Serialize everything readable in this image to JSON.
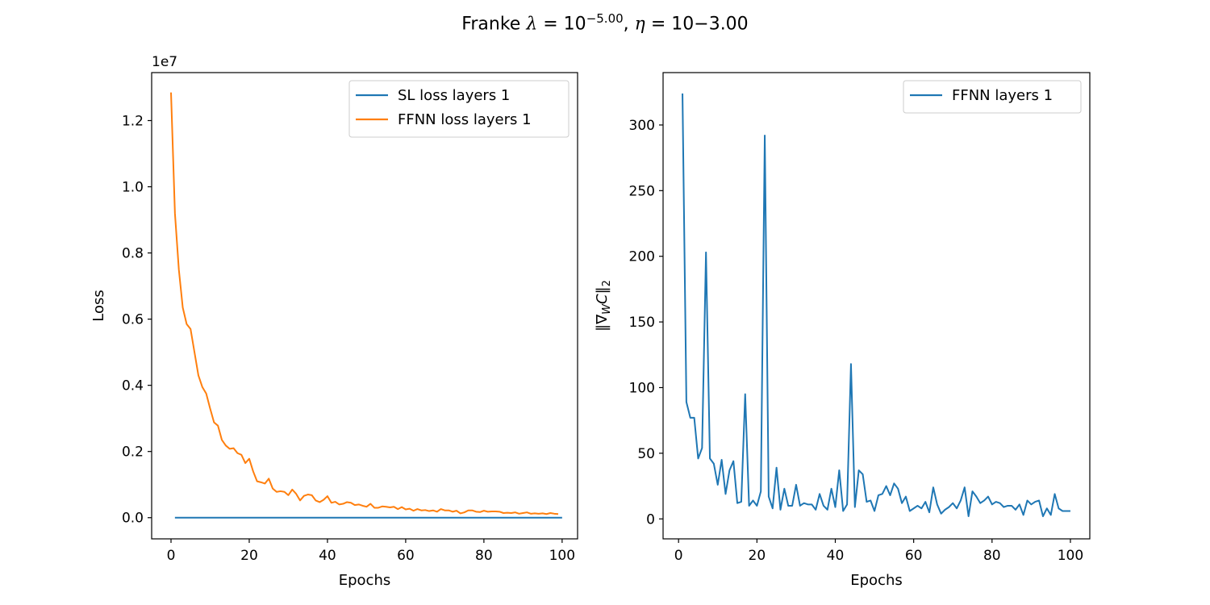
{
  "figure": {
    "title_prefix": "Franke ",
    "title_lambda": "λ",
    "title_eq1": " = 10",
    "title_exp": "−5.00",
    "title_comma": ", ",
    "title_eta": "η",
    "title_rest": " = 10−3.00"
  },
  "colors": {
    "blue": "#1f77b4",
    "orange": "#ff7f0e"
  },
  "chart_data": [
    {
      "type": "line",
      "xlabel": "Epochs",
      "ylabel": "Loss",
      "offset_label": "1e7",
      "xlim": [
        -4.95,
        103.95
      ],
      "ylim": [
        -0.064,
        1.345
      ],
      "xticks": [
        0,
        20,
        40,
        60,
        80,
        100
      ],
      "xtick_labels": [
        "0",
        "20",
        "40",
        "60",
        "80",
        "100"
      ],
      "yticks": [
        0.0,
        0.2,
        0.4,
        0.6,
        0.8,
        1.0,
        1.2
      ],
      "ytick_labels": [
        "0.0",
        "0.2",
        "0.4",
        "0.6",
        "0.8",
        "1.0",
        "1.2"
      ],
      "legend_position": "top-right",
      "series": [
        {
          "name": "SL loss layers 1",
          "color": "#1f77b4",
          "x": [
            1,
            100
          ],
          "y": [
            0.0,
            0.0
          ]
        },
        {
          "name": "FFNN loss layers 1",
          "color": "#ff7f0e",
          "x": [
            0,
            1,
            2,
            3,
            4,
            5,
            6,
            7,
            8,
            9,
            10,
            11,
            12,
            13,
            14,
            15,
            16,
            17,
            18,
            19,
            20,
            21,
            22,
            23,
            24,
            25,
            26,
            27,
            28,
            29,
            30,
            31,
            32,
            33,
            34,
            35,
            36,
            37,
            38,
            39,
            40,
            41,
            42,
            43,
            44,
            45,
            46,
            47,
            48,
            49,
            50,
            51,
            52,
            53,
            54,
            55,
            56,
            57,
            58,
            59,
            60,
            61,
            62,
            63,
            64,
            65,
            66,
            67,
            68,
            69,
            70,
            71,
            72,
            73,
            74,
            75,
            76,
            77,
            78,
            79,
            80,
            81,
            82,
            83,
            84,
            85,
            86,
            87,
            88,
            89,
            90,
            91,
            92,
            93,
            94,
            95,
            96,
            97,
            98,
            99
          ],
          "y": [
            1.285,
            0.92,
            0.75,
            0.635,
            0.585,
            0.57,
            0.5,
            0.43,
            0.395,
            0.375,
            0.33,
            0.288,
            0.278,
            0.235,
            0.218,
            0.208,
            0.21,
            0.195,
            0.19,
            0.165,
            0.178,
            0.14,
            0.11,
            0.107,
            0.103,
            0.118,
            0.088,
            0.078,
            0.08,
            0.078,
            0.068,
            0.085,
            0.072,
            0.052,
            0.066,
            0.07,
            0.068,
            0.052,
            0.047,
            0.054,
            0.065,
            0.045,
            0.048,
            0.04,
            0.042,
            0.047,
            0.045,
            0.038,
            0.04,
            0.036,
            0.033,
            0.042,
            0.03,
            0.03,
            0.034,
            0.033,
            0.031,
            0.033,
            0.026,
            0.032,
            0.025,
            0.027,
            0.021,
            0.026,
            0.022,
            0.023,
            0.02,
            0.022,
            0.018,
            0.026,
            0.022,
            0.022,
            0.018,
            0.021,
            0.013,
            0.016,
            0.022,
            0.022,
            0.018,
            0.017,
            0.021,
            0.018,
            0.019,
            0.019,
            0.018,
            0.014,
            0.015,
            0.014,
            0.016,
            0.012,
            0.014,
            0.016,
            0.012,
            0.013,
            0.012,
            0.013,
            0.011,
            0.014,
            0.012,
            0.011
          ]
        }
      ]
    },
    {
      "type": "line",
      "xlabel": "Epochs",
      "ylabel": "‖∇WC‖2",
      "ylabel_parts": {
        "open": "‖∇",
        "sub1": "W",
        "mid": "C‖",
        "sub2": "2"
      },
      "xlim": [
        -3.95,
        104.95
      ],
      "ylim": [
        -15.2,
        339.9
      ],
      "xticks": [
        0,
        20,
        40,
        60,
        80,
        100
      ],
      "xtick_labels": [
        "0",
        "20",
        "40",
        "60",
        "80",
        "100"
      ],
      "yticks": [
        0,
        50,
        100,
        150,
        200,
        250,
        300
      ],
      "ytick_labels": [
        "0",
        "50",
        "100",
        "150",
        "200",
        "250",
        "300"
      ],
      "legend_position": "top-right",
      "series": [
        {
          "name": "FFNN layers 1",
          "color": "#1f77b4",
          "x": [
            1,
            2,
            3,
            4,
            5,
            6,
            7,
            8,
            9,
            10,
            11,
            12,
            13,
            14,
            15,
            16,
            17,
            18,
            19,
            20,
            21,
            22,
            23,
            24,
            25,
            26,
            27,
            28,
            29,
            30,
            31,
            32,
            33,
            34,
            35,
            36,
            37,
            38,
            39,
            40,
            41,
            42,
            43,
            44,
            45,
            46,
            47,
            48,
            49,
            50,
            51,
            52,
            53,
            54,
            55,
            56,
            57,
            58,
            59,
            60,
            61,
            62,
            63,
            64,
            65,
            66,
            67,
            68,
            69,
            70,
            71,
            72,
            73,
            74,
            75,
            76,
            77,
            78,
            79,
            80,
            81,
            82,
            83,
            84,
            85,
            86,
            87,
            88,
            89,
            90,
            91,
            92,
            93,
            94,
            95,
            96,
            97,
            98,
            99,
            100
          ],
          "y": [
            324,
            89,
            77,
            77,
            46,
            54,
            203,
            46,
            42,
            26,
            45,
            19,
            37,
            44,
            12,
            13,
            95,
            10,
            14,
            10,
            21,
            292,
            17,
            8,
            39,
            7,
            23,
            10,
            10,
            26,
            10,
            12,
            11,
            11,
            7,
            19,
            10,
            7,
            23,
            9,
            37,
            6,
            11,
            118,
            9,
            37,
            34,
            13,
            14,
            6,
            18,
            19,
            25,
            18,
            27,
            23,
            12,
            17,
            6,
            8,
            10,
            8,
            13,
            5,
            24,
            11,
            4,
            7,
            9,
            12,
            8,
            14,
            24,
            2,
            21,
            17,
            12,
            14,
            17,
            11,
            13,
            12,
            9,
            10,
            10,
            7,
            11,
            3,
            14,
            11,
            13,
            14,
            2,
            8,
            3,
            19,
            8,
            6,
            6,
            6
          ]
        }
      ]
    }
  ]
}
